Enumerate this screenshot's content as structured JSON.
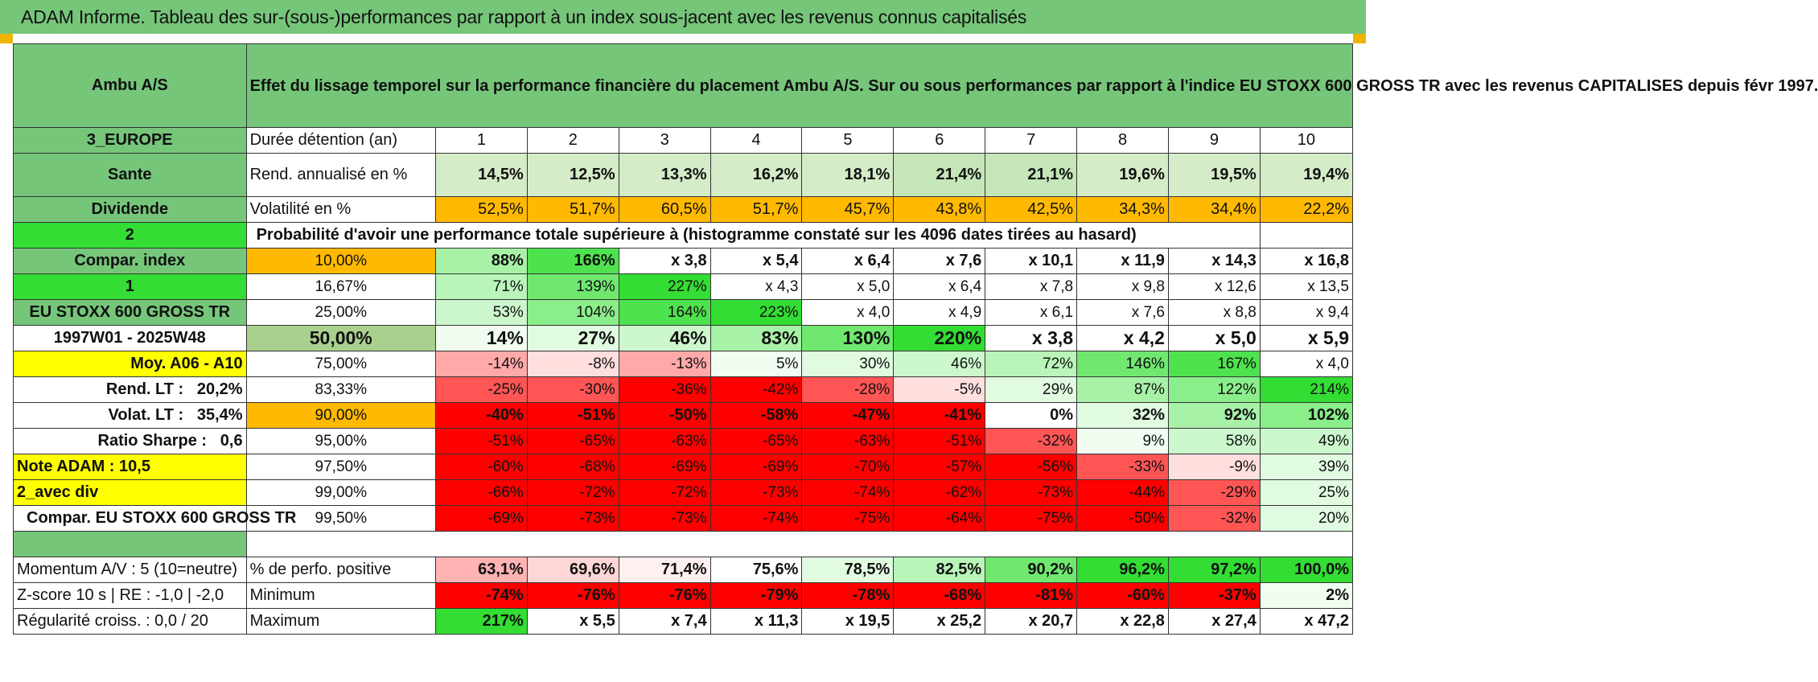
{
  "title": "ADAM Informe. Tableau des sur-(sous-)performances par rapport à un index sous-jacent avec les revenus connus capitalisés",
  "header": {
    "asset": "Ambu A/S",
    "description": "Effet du lissage temporel sur la performance financière du placement Ambu A/S. Sur ou sous performances par rapport à l'indice EU STOXX 600 GROSS TR avec les revenus CAPITALISES depuis févr 1997."
  },
  "left": {
    "region": "3_EUROPE",
    "sector": "Sante",
    "dividend": "Dividende",
    "num2": "2",
    "compar": "Compar. index",
    "num1": "1",
    "index": "EU STOXX 600 GROSS TR",
    "period": "1997W01 - 2025W48",
    "moy": "Moy. A06 - A10",
    "rend_label": "Rend. LT :",
    "rend_value": "20,2%",
    "volat_label": "Volat. LT :",
    "volat_value": "35,4%",
    "sharpe_label": "Ratio Sharpe :",
    "sharpe_value": "0,6",
    "note": "Note ADAM : 10,5",
    "avec_div": "2_avec div",
    "compar_index": "Compar. EU STOXX 600 GROSS TR"
  },
  "labels": {
    "duree": "Durée détention (an)",
    "rend": "Rend. annualisé en %",
    "volat": "Volatilité en %",
    "proba": "Probabilité d'avoir une performance totale supérieure à (histogramme constaté sur les 4096 dates tirées au hasard)"
  },
  "years": [
    "1",
    "2",
    "3",
    "4",
    "5",
    "6",
    "7",
    "8",
    "9",
    "10"
  ],
  "rend": [
    "14,5%",
    "12,5%",
    "13,3%",
    "16,2%",
    "18,1%",
    "21,4%",
    "21,1%",
    "19,6%",
    "19,5%",
    "19,4%"
  ],
  "volat": [
    "52,5%",
    "51,7%",
    "60,5%",
    "51,7%",
    "45,7%",
    "43,8%",
    "42,5%",
    "34,3%",
    "34,4%",
    "22,2%"
  ],
  "rows": [
    {
      "pct": "10,00%",
      "cells": [
        "88%",
        "166%",
        "x 3,8",
        "x 5,4",
        "x 6,4",
        "x 7,6",
        "x 10,1",
        "x 11,9",
        "x 14,3",
        "x 16,8"
      ]
    },
    {
      "pct": "16,67%",
      "cells": [
        "71%",
        "139%",
        "227%",
        "x 4,3",
        "x 5,0",
        "x 6,4",
        "x 7,8",
        "x 9,8",
        "x 12,6",
        "x 13,5"
      ]
    },
    {
      "pct": "25,00%",
      "cells": [
        "53%",
        "104%",
        "164%",
        "223%",
        "x 4,0",
        "x 4,9",
        "x 6,1",
        "x 7,6",
        "x 8,8",
        "x 9,4"
      ]
    },
    {
      "pct": "50,00%",
      "cells": [
        "14%",
        "27%",
        "46%",
        "83%",
        "130%",
        "220%",
        "x 3,8",
        "x 4,2",
        "x 5,0",
        "x 5,9"
      ]
    },
    {
      "pct": "75,00%",
      "cells": [
        "-14%",
        "-8%",
        "-13%",
        "5%",
        "30%",
        "46%",
        "72%",
        "146%",
        "167%",
        "x 4,0"
      ]
    },
    {
      "pct": "83,33%",
      "cells": [
        "-25%",
        "-30%",
        "-36%",
        "-42%",
        "-28%",
        "-5%",
        "29%",
        "87%",
        "122%",
        "214%"
      ]
    },
    {
      "pct": "90,00%",
      "cells": [
        "-40%",
        "-51%",
        "-50%",
        "-58%",
        "-47%",
        "-41%",
        "0%",
        "32%",
        "92%",
        "102%"
      ]
    },
    {
      "pct": "95,00%",
      "cells": [
        "-51%",
        "-65%",
        "-63%",
        "-65%",
        "-63%",
        "-51%",
        "-32%",
        "9%",
        "58%",
        "49%"
      ]
    },
    {
      "pct": "97,50%",
      "cells": [
        "-60%",
        "-68%",
        "-69%",
        "-69%",
        "-70%",
        "-57%",
        "-56%",
        "-33%",
        "-9%",
        "39%"
      ]
    },
    {
      "pct": "99,00%",
      "cells": [
        "-66%",
        "-72%",
        "-72%",
        "-73%",
        "-74%",
        "-62%",
        "-73%",
        "-44%",
        "-29%",
        "25%"
      ]
    },
    {
      "pct": "99,50%",
      "cells": [
        "-69%",
        "-73%",
        "-73%",
        "-74%",
        "-75%",
        "-64%",
        "-75%",
        "-50%",
        "-32%",
        "20%"
      ]
    }
  ],
  "stats": [
    {
      "left": "Momentum A/V : 5 (10=neutre)",
      "label": "% de perfo. positive",
      "cells": [
        "63,1%",
        "69,6%",
        "71,4%",
        "75,6%",
        "78,5%",
        "82,5%",
        "90,2%",
        "96,2%",
        "97,2%",
        "100,0%"
      ]
    },
    {
      "left": "Z-score 10 s | RE : -1,0 | -2,0",
      "label": "Minimum",
      "cells": [
        "-74%",
        "-76%",
        "-76%",
        "-79%",
        "-78%",
        "-68%",
        "-81%",
        "-60%",
        "-37%",
        "2%"
      ]
    },
    {
      "left": "Régularité croiss. : 0,0 / 20",
      "label": "Maximum",
      "cells": [
        "217%",
        "x 5,5",
        "x 7,4",
        "x 11,3",
        "x 19,5",
        "x 25,2",
        "x 20,7",
        "x 22,8",
        "x 27,4",
        "x 47,2"
      ]
    }
  ],
  "colors": {
    "header_green": "#76c67a",
    "bright_green": "#33dd33",
    "orange": "#ffb900",
    "yellow": "#ffff00",
    "red": "#ff0000",
    "text_red": "#e00000"
  }
}
